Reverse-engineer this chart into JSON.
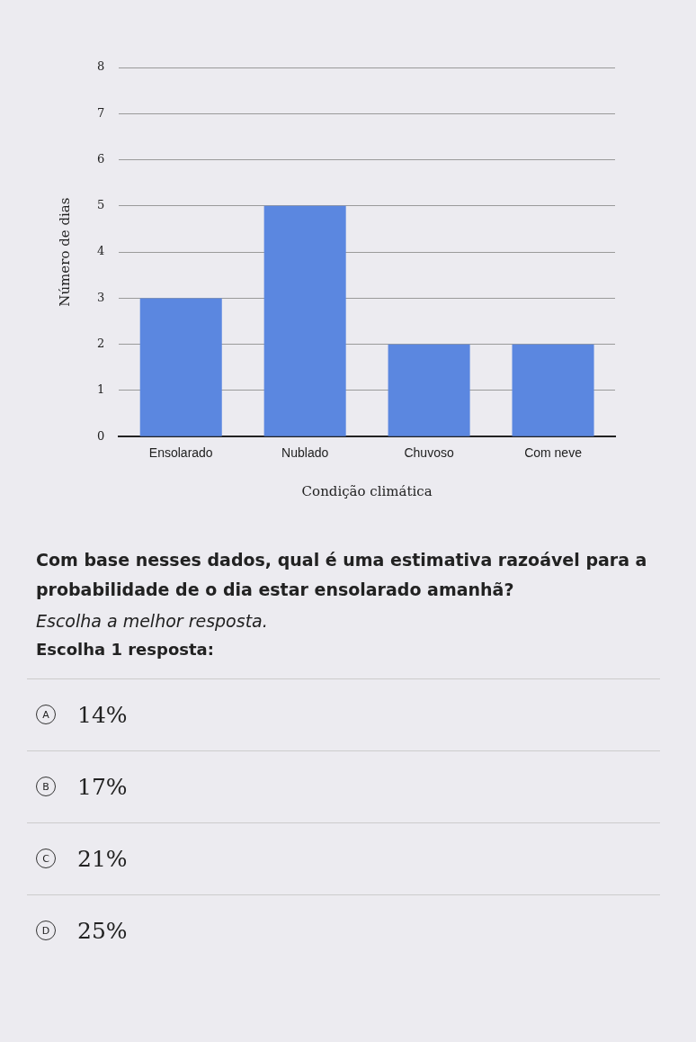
{
  "chart_data": {
    "type": "bar",
    "xlabel": "Condição climática",
    "ylabel": "Número de dias",
    "categories": [
      "Ensolarado",
      "Nublado",
      "Chuvoso",
      "Com neve"
    ],
    "values": [
      3,
      5,
      2,
      2
    ],
    "color": "#5b87e0",
    "ylim": [
      0,
      8
    ],
    "yticks": [
      0,
      1,
      2,
      3,
      4,
      5,
      6,
      7,
      8
    ],
    "grid": "y",
    "legend": false,
    "annotations": [
      "Com base nesses dados, qual é uma estimativa razoável para a probabilidade de o dia estar ensolarado amanhã?",
      "Escolha a melhor resposta.",
      "Escolha 1 resposta:",
      "A",
      "14%",
      "B",
      "17%",
      "C",
      "21%",
      "D",
      "25%"
    ]
  }
}
